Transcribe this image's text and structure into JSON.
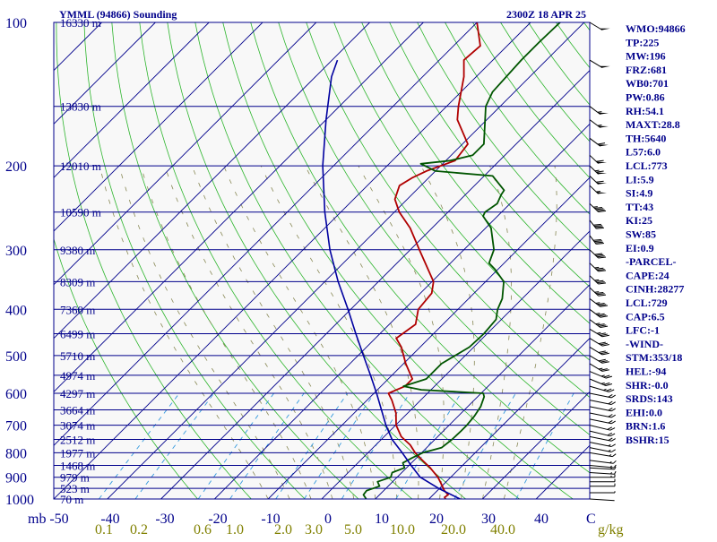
{
  "header": {
    "station": "YMML (94866) Sounding",
    "time": "2300Z 18 APR 25"
  },
  "indices": [
    "WMO:94866",
    "TP:225",
    "MW:196",
    "FRZ:681",
    "WB0:701",
    "PW:0.86",
    "RH:54.1",
    "MAXT:28.8",
    "TH:5640",
    "L57:6.0",
    "LCL:773",
    "LI:5.9",
    "SI:4.9",
    "TT:43",
    "KI:25",
    "SW:85",
    "EI:0.9",
    "-PARCEL-",
    "CAPE:24",
    "CINH:28277",
    "LCL:729",
    "CAP:6.5",
    "LFC:-1",
    "-WIND-",
    "STM:353/18",
    "HEL:-94",
    "SHR:-0.0",
    "SRDS:143",
    "EHI:0.0",
    "BRN:1.6",
    "BSHR:15"
  ],
  "colors": {
    "axis": "#00008b",
    "isobar": "#00008b",
    "isotherm": "#00008b",
    "dry_adiabat": "#2db52d",
    "moist_adiabat": "#888855",
    "mixing_ratio": "#3399dd",
    "temperature": "#b00000",
    "dewpoint": "#005500",
    "parcel": "#0000a0",
    "mixing_label": "#808000"
  },
  "chart_data": {
    "type": "line",
    "title": "YMML (94866) Sounding",
    "subtitle": "2300Z 18 APR 25",
    "ylabel": "mb",
    "xlabel": "C",
    "mixing_ratio_unit": "g/kg",
    "y_scale": "log",
    "xlim": [
      -50,
      50
    ],
    "ylim": [
      1000,
      100
    ],
    "pressure_ticks": [
      100,
      200,
      300,
      400,
      500,
      600,
      700,
      800,
      900,
      1000
    ],
    "temperature_ticks": [
      -50,
      -40,
      -30,
      -20,
      -10,
      0,
      10,
      20,
      30,
      40
    ],
    "mixing_ratio_labels": [
      "0.1",
      "0.2",
      "0.6",
      "1.0",
      "2.0",
      "3.0",
      "5.0",
      "10.0",
      "20.0",
      "40.0"
    ],
    "mixing_ratio_values": [
      0.1,
      0.2,
      0.6,
      1.0,
      2.0,
      3.0,
      5.0,
      10.0,
      20.0,
      40.0
    ],
    "height_levels": [
      {
        "p": 100,
        "label": "16330 m"
      },
      {
        "p": 150,
        "label": "13830 m"
      },
      {
        "p": 200,
        "label": "12010 m"
      },
      {
        "p": 250,
        "label": "10590 m"
      },
      {
        "p": 300,
        "label": "9380 m"
      },
      {
        "p": 350,
        "label": "8309 m"
      },
      {
        "p": 400,
        "label": "7360 m"
      },
      {
        "p": 450,
        "label": "6499 m"
      },
      {
        "p": 500,
        "label": "5710 m"
      },
      {
        "p": 550,
        "label": "4974 m"
      },
      {
        "p": 600,
        "label": "4297 m"
      },
      {
        "p": 650,
        "label": "3664 m"
      },
      {
        "p": 700,
        "label": "3074 m"
      },
      {
        "p": 750,
        "label": "2512 m"
      },
      {
        "p": 800,
        "label": "1977 m"
      },
      {
        "p": 850,
        "label": "1468 m"
      },
      {
        "p": 900,
        "label": "979 m"
      },
      {
        "p": 950,
        "label": "523 m"
      },
      {
        "p": 1000,
        "label": "70 m"
      }
    ],
    "series": [
      {
        "id": "temperature",
        "points": [
          [
            1000,
            23.1
          ],
          [
            992,
            22.6
          ],
          [
            980,
            22.8
          ],
          [
            960,
            21.3
          ],
          [
            930,
            19.5
          ],
          [
            900,
            17.6
          ],
          [
            860,
            14.4
          ],
          [
            830,
            11.6
          ],
          [
            800,
            8.8
          ],
          [
            770,
            6.4
          ],
          [
            740,
            3.2
          ],
          [
            700,
            0.1
          ],
          [
            660,
            -2.2
          ],
          [
            620,
            -5.4
          ],
          [
            600,
            -7.3
          ],
          [
            580,
            -5.5
          ],
          [
            560,
            -5.5
          ],
          [
            520,
            -9.6
          ],
          [
            480,
            -13.5
          ],
          [
            460,
            -16.1
          ],
          [
            430,
            -15.1
          ],
          [
            400,
            -17.4
          ],
          [
            370,
            -17.9
          ],
          [
            350,
            -19.7
          ],
          [
            300,
            -28.3
          ],
          [
            270,
            -34.1
          ],
          [
            250,
            -39.1
          ],
          [
            235,
            -42.3
          ],
          [
            220,
            -44.0
          ],
          [
            212,
            -43.1
          ],
          [
            205,
            -41.7
          ],
          [
            195,
            -38.3
          ],
          [
            180,
            -39.0
          ],
          [
            160,
            -45.5
          ],
          [
            150,
            -47.8
          ],
          [
            130,
            -52.3
          ],
          [
            120,
            -55.4
          ],
          [
            112,
            -55.0
          ],
          [
            100,
            -60.0
          ]
        ]
      },
      {
        "id": "dewpoint",
        "points": [
          [
            1000,
            8.3
          ],
          [
            980,
            7.0
          ],
          [
            960,
            6.8
          ],
          [
            940,
            8.4
          ],
          [
            920,
            7.2
          ],
          [
            900,
            8.8
          ],
          [
            880,
            8.2
          ],
          [
            860,
            9.6
          ],
          [
            840,
            8.4
          ],
          [
            820,
            9.2
          ],
          [
            800,
            10.2
          ],
          [
            780,
            12.8
          ],
          [
            750,
            13.2
          ],
          [
            720,
            13.3
          ],
          [
            700,
            13.3
          ],
          [
            670,
            13.0
          ],
          [
            640,
            12.4
          ],
          [
            610,
            11.2
          ],
          [
            600,
            10.4
          ],
          [
            590,
            -1.8
          ],
          [
            580,
            -5.8
          ],
          [
            560,
            -2.9
          ],
          [
            520,
            -2.9
          ],
          [
            480,
            -0.8
          ],
          [
            450,
            -0.6
          ],
          [
            420,
            -1.0
          ],
          [
            400,
            -2.6
          ],
          [
            380,
            -3.7
          ],
          [
            350,
            -6.6
          ],
          [
            330,
            -10.5
          ],
          [
            320,
            -12.8
          ],
          [
            300,
            -14.4
          ],
          [
            270,
            -19.0
          ],
          [
            255,
            -22.7
          ],
          [
            250,
            -23.1
          ],
          [
            240,
            -22.4
          ],
          [
            230,
            -23.3
          ],
          [
            225,
            -23.6
          ],
          [
            210,
            -28.4
          ],
          [
            205,
            -40.0
          ],
          [
            198,
            -44.1
          ],
          [
            195,
            -39.2
          ],
          [
            190,
            -36.0
          ],
          [
            180,
            -36.0
          ],
          [
            150,
            -42.7
          ],
          [
            140,
            -44.1
          ],
          [
            120,
            -44.7
          ],
          [
            110,
            -44.7
          ],
          [
            100,
            -44.5
          ]
        ]
      },
      {
        "id": "parcel",
        "points": [
          [
            1000,
            25.8
          ],
          [
            950,
            19.8
          ],
          [
            900,
            14.3
          ],
          [
            850,
            10.4
          ],
          [
            800,
            6.4
          ],
          [
            750,
            2.0
          ],
          [
            700,
            -1.8
          ],
          [
            650,
            -5.5
          ],
          [
            600,
            -9.5
          ],
          [
            550,
            -14.0
          ],
          [
            500,
            -19.0
          ],
          [
            450,
            -24.5
          ],
          [
            400,
            -30.5
          ],
          [
            350,
            -37.5
          ],
          [
            300,
            -45.0
          ],
          [
            250,
            -53.0
          ],
          [
            200,
            -62.0
          ],
          [
            160,
            -70.0
          ],
          [
            130,
            -77.0
          ],
          [
            120,
            -79.0
          ]
        ]
      }
    ],
    "wind_barbs": [
      {
        "p": 1000,
        "dir": 280,
        "spd": 0
      },
      {
        "p": 970,
        "dir": 270,
        "spd": 5
      },
      {
        "p": 940,
        "dir": 270,
        "spd": 10
      },
      {
        "p": 920,
        "dir": 270,
        "spd": 10
      },
      {
        "p": 900,
        "dir": 270,
        "spd": 15
      },
      {
        "p": 880,
        "dir": 280,
        "spd": 15
      },
      {
        "p": 860,
        "dir": 280,
        "spd": 15
      },
      {
        "p": 850,
        "dir": 285,
        "spd": 15
      },
      {
        "p": 830,
        "dir": 290,
        "spd": 15
      },
      {
        "p": 800,
        "dir": 295,
        "spd": 15
      },
      {
        "p": 780,
        "dir": 300,
        "spd": 15
      },
      {
        "p": 760,
        "dir": 300,
        "spd": 15
      },
      {
        "p": 740,
        "dir": 300,
        "spd": 20
      },
      {
        "p": 720,
        "dir": 305,
        "spd": 20
      },
      {
        "p": 700,
        "dir": 305,
        "spd": 20
      },
      {
        "p": 680,
        "dir": 300,
        "spd": 20
      },
      {
        "p": 660,
        "dir": 300,
        "spd": 20
      },
      {
        "p": 640,
        "dir": 300,
        "spd": 20
      },
      {
        "p": 620,
        "dir": 300,
        "spd": 20
      },
      {
        "p": 600,
        "dir": 300,
        "spd": 20
      },
      {
        "p": 580,
        "dir": 310,
        "spd": 25
      },
      {
        "p": 560,
        "dir": 320,
        "spd": 25
      },
      {
        "p": 540,
        "dir": 320,
        "spd": 25
      },
      {
        "p": 520,
        "dir": 330,
        "spd": 25
      },
      {
        "p": 500,
        "dir": 330,
        "spd": 30
      },
      {
        "p": 480,
        "dir": 330,
        "spd": 30
      },
      {
        "p": 460,
        "dir": 330,
        "spd": 30
      },
      {
        "p": 440,
        "dir": 330,
        "spd": 35
      },
      {
        "p": 420,
        "dir": 335,
        "spd": 35
      },
      {
        "p": 400,
        "dir": 335,
        "spd": 35
      },
      {
        "p": 380,
        "dir": 335,
        "spd": 35
      },
      {
        "p": 360,
        "dir": 340,
        "spd": 35
      },
      {
        "p": 340,
        "dir": 340,
        "spd": 35
      },
      {
        "p": 320,
        "dir": 340,
        "spd": 35
      },
      {
        "p": 300,
        "dir": 340,
        "spd": 40
      },
      {
        "p": 280,
        "dir": 345,
        "spd": 40
      },
      {
        "p": 260,
        "dir": 345,
        "spd": 40
      },
      {
        "p": 240,
        "dir": 340,
        "spd": 45
      },
      {
        "p": 220,
        "dir": 340,
        "spd": 55
      },
      {
        "p": 210,
        "dir": 340,
        "spd": 60
      },
      {
        "p": 200,
        "dir": 340,
        "spd": 65
      },
      {
        "p": 190,
        "dir": 340,
        "spd": 60
      },
      {
        "p": 175,
        "dir": 335,
        "spd": 60
      },
      {
        "p": 160,
        "dir": 335,
        "spd": 55
      },
      {
        "p": 150,
        "dir": 335,
        "spd": 55
      },
      {
        "p": 120,
        "dir": 330,
        "spd": 50
      },
      {
        "p": 100,
        "dir": 330,
        "spd": 50
      }
    ]
  }
}
